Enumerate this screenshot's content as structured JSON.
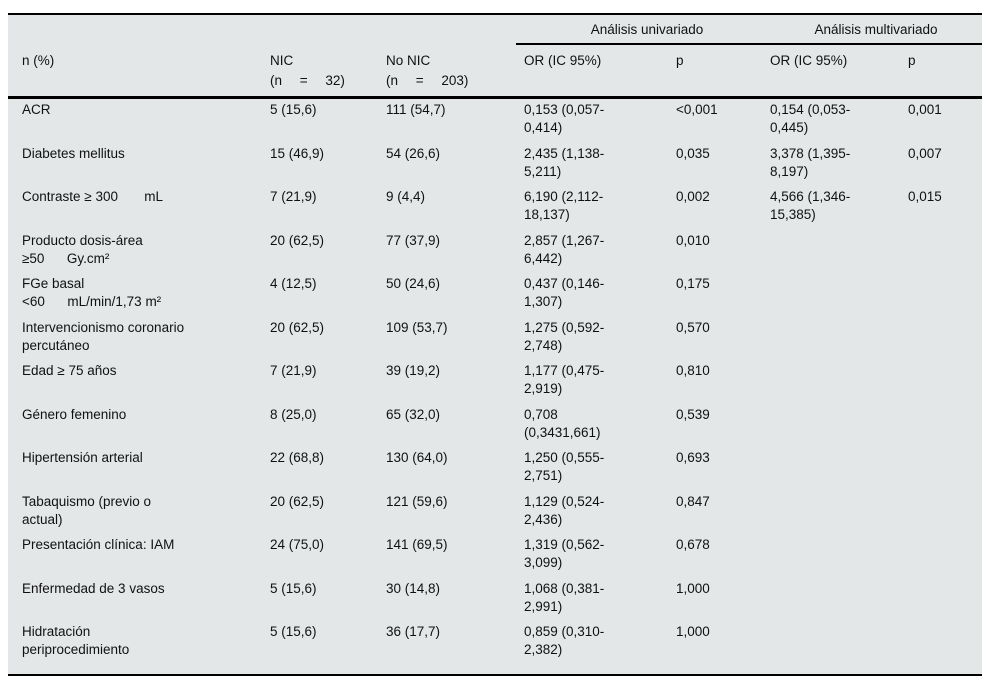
{
  "colors": {
    "table_bg": "#e3e7e8",
    "rule": "#000000",
    "text": "#111111"
  },
  "table": {
    "header": {
      "col_label": "n (%)",
      "nic_line1": "NIC",
      "nic_line2": "(n = 32)",
      "no_nic_line1": "No NIC",
      "no_nic_line2": "(n = 203)",
      "group_univariate": "Análisis univariado",
      "group_multivariate": "Análisis multivariado",
      "or_uni_label": "OR (IC 95%)",
      "p_uni_label": "p",
      "or_multi_label": "OR (IC 95%)",
      "p_multi_label": "p"
    },
    "rows": [
      {
        "label": "ACR",
        "nic": "5 (15,6)",
        "no_nic": "111 (54,7)",
        "or_uni": "0,153 (0,057-\n0,414)",
        "p_uni": "<0,001",
        "or_multi": "0,154 (0,053-\n0,445)",
        "p_multi": "0,001"
      },
      {
        "label": "Diabetes mellitus",
        "nic": "15 (46,9)",
        "no_nic": "54 (26,6)",
        "or_uni": "2,435 (1,138-\n5,211)",
        "p_uni": "0,035",
        "or_multi": "3,378 (1,395-\n8,197)",
        "p_multi": "0,007"
      },
      {
        "label": "Contraste ≥ 300       mL",
        "nic": "7 (21,9)",
        "no_nic": "9 (4,4)",
        "or_uni": "6,190 (2,112-\n18,137)",
        "p_uni": "0,002",
        "or_multi": "4,566 (1,346-\n15,385)",
        "p_multi": "0,015"
      },
      {
        "label": "Producto dosis-área\n≥50      Gy.cm²",
        "nic": "20 (62,5)",
        "no_nic": "77 (37,9)",
        "or_uni": "2,857 (1,267-\n6,442)",
        "p_uni": "0,010",
        "or_multi": "",
        "p_multi": ""
      },
      {
        "label": "FGe basal\n<60      mL/min/1,73 m²",
        "nic": "4 (12,5)",
        "no_nic": "50 (24,6)",
        "or_uni": "0,437 (0,146-\n1,307)",
        "p_uni": "0,175",
        "or_multi": "",
        "p_multi": ""
      },
      {
        "label": "Intervencionismo coronario\npercutáneo",
        "nic": "20 (62,5)",
        "no_nic": "109 (53,7)",
        "or_uni": "1,275 (0,592-\n2,748)",
        "p_uni": "0,570",
        "or_multi": "",
        "p_multi": ""
      },
      {
        "label": "Edad ≥ 75 años",
        "nic": "7 (21,9)",
        "no_nic": "39 (19,2)",
        "or_uni": "1,177 (0,475-\n2,919)",
        "p_uni": "0,810",
        "or_multi": "",
        "p_multi": ""
      },
      {
        "label": "Género femenino",
        "nic": "8 (25,0)",
        "no_nic": "65 (32,0)",
        "or_uni": "0,708\n(0,3431,661)",
        "p_uni": "0,539",
        "or_multi": "",
        "p_multi": ""
      },
      {
        "label": "Hipertensión arterial",
        "nic": "22 (68,8)",
        "no_nic": "130 (64,0)",
        "or_uni": "1,250 (0,555-\n2,751)",
        "p_uni": "0,693",
        "or_multi": "",
        "p_multi": ""
      },
      {
        "label": "Tabaquismo (previo o\nactual)",
        "nic": "20 (62,5)",
        "no_nic": "121 (59,6)",
        "or_uni": "1,129 (0,524-\n2,436)",
        "p_uni": "0,847",
        "or_multi": "",
        "p_multi": ""
      },
      {
        "label": "Presentación clínica: IAM",
        "nic": "24 (75,0)",
        "no_nic": "141 (69,5)",
        "or_uni": "1,319 (0,562-\n3,099)",
        "p_uni": "0,678",
        "or_multi": "",
        "p_multi": ""
      },
      {
        "label": "Enfermedad de 3 vasos",
        "nic": "5 (15,6)",
        "no_nic": "30 (14,8)",
        "or_uni": "1,068 (0,381-\n2,991)",
        "p_uni": "1,000",
        "or_multi": "",
        "p_multi": ""
      },
      {
        "label": "Hidratación\nperiprocedimiento",
        "nic": "5 (15,6)",
        "no_nic": "36 (17,7)",
        "or_uni": "0,859 (0,310-\n2,382)",
        "p_uni": "1,000",
        "or_multi": "",
        "p_multi": ""
      }
    ]
  }
}
